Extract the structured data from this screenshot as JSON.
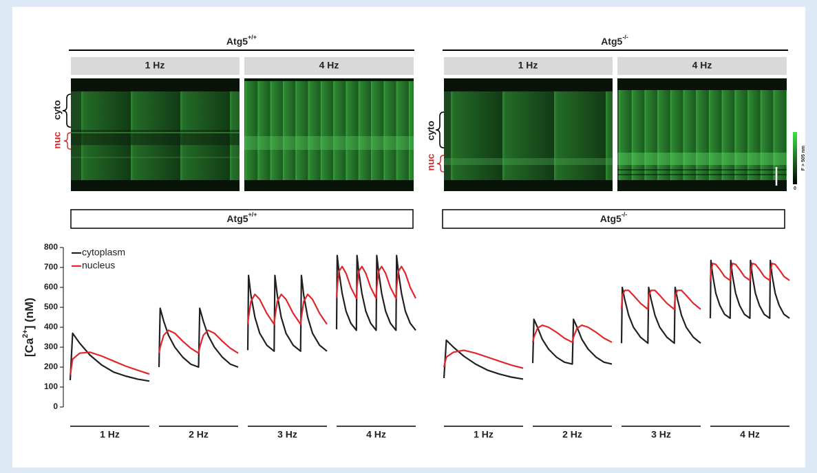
{
  "images": [
    {
      "genotype": {
        "text": "Atg5",
        "sup": "+/+"
      },
      "conditions": [
        "1 Hz",
        "4 Hz"
      ],
      "cyto_label": "cyto",
      "nuc_label": "nuc"
    },
    {
      "genotype": {
        "text": "Atg5",
        "sup": "-/-"
      },
      "conditions": [
        "1 Hz",
        "4 Hz"
      ],
      "cyto_label": "cyto",
      "nuc_label": "nuc"
    }
  ],
  "colorbar": {
    "label": "F > 505 nm",
    "min_label": "0"
  },
  "chart_data": [
    {
      "type": "line",
      "title": {
        "text": "Atg5",
        "sup": "+/+"
      },
      "ylabel": {
        "pre": "[Ca",
        "sup": "2+",
        "post": "]  (nM)"
      },
      "ylim": [
        0,
        800
      ],
      "yticks": [
        0,
        100,
        200,
        300,
        400,
        500,
        600,
        700,
        800
      ],
      "xlim": [
        0,
        1
      ],
      "categories": [
        "1 Hz",
        "2 Hz",
        "3 Hz",
        "4 Hz"
      ],
      "x": [
        [
          0,
          0.03,
          0.12,
          0.25,
          0.4,
          0.55,
          0.7,
          0.85,
          1.0
        ],
        [
          0,
          0.015,
          0.06,
          0.12,
          0.2,
          0.3,
          0.4,
          0.5,
          0.515,
          0.56,
          0.62,
          0.7,
          0.8,
          0.9,
          1.0
        ],
        [
          0,
          0.01,
          0.04,
          0.09,
          0.15,
          0.24,
          0.333,
          0.343,
          0.373,
          0.423,
          0.483,
          0.573,
          0.667,
          0.677,
          0.707,
          0.757,
          0.817,
          0.907,
          1.0
        ],
        [
          0,
          0.008,
          0.03,
          0.07,
          0.12,
          0.18,
          0.25,
          0.258,
          0.28,
          0.32,
          0.37,
          0.43,
          0.5,
          0.508,
          0.53,
          0.57,
          0.62,
          0.68,
          0.75,
          0.758,
          0.78,
          0.82,
          0.87,
          0.93,
          1.0
        ]
      ],
      "legend": true,
      "series": [
        {
          "name": "cytoplasm",
          "color": "#231f20",
          "values": [
            [
              135,
              370,
              320,
              260,
              210,
              175,
              155,
              140,
              130
            ],
            [
              200,
              495,
              430,
              360,
              300,
              250,
              215,
              200,
              495,
              430,
              360,
              300,
              250,
              215,
              200
            ],
            [
              285,
              660,
              560,
              450,
              370,
              310,
              280,
              660,
              560,
              450,
              370,
              310,
              280,
              660,
              560,
              450,
              370,
              310,
              280
            ],
            [
              390,
              760,
              680,
              570,
              480,
              420,
              385,
              760,
              680,
              570,
              480,
              420,
              385,
              760,
              680,
              570,
              480,
              420,
              385,
              760,
              680,
              570,
              480,
              420,
              385
            ]
          ]
        },
        {
          "name": "nucleus",
          "color": "#e0262b",
          "values": [
            [
              160,
              240,
              270,
              275,
              255,
              230,
              205,
              185,
              165
            ],
            [
              270,
              300,
              360,
              385,
              370,
              330,
              295,
              270,
              300,
              360,
              385,
              370,
              330,
              295,
              270
            ],
            [
              415,
              450,
              530,
              565,
              540,
              470,
              415,
              450,
              530,
              565,
              540,
              470,
              415,
              450,
              530,
              565,
              540,
              470,
              415
            ],
            [
              545,
              600,
              680,
              705,
              670,
              600,
              545,
              600,
              680,
              705,
              670,
              600,
              545,
              600,
              680,
              705,
              670,
              600,
              545,
              600,
              680,
              705,
              670,
              600,
              545
            ]
          ]
        }
      ]
    },
    {
      "type": "line",
      "title": {
        "text": "Atg5",
        "sup": "-/-"
      },
      "ylim": [
        0,
        800
      ],
      "xlim": [
        0,
        1
      ],
      "categories": [
        "1 Hz",
        "2 Hz",
        "3 Hz",
        "4 Hz"
      ],
      "x": [
        [
          0,
          0.03,
          0.12,
          0.25,
          0.4,
          0.55,
          0.7,
          0.85,
          1.0
        ],
        [
          0,
          0.015,
          0.06,
          0.12,
          0.2,
          0.3,
          0.4,
          0.5,
          0.515,
          0.56,
          0.62,
          0.7,
          0.8,
          0.9,
          1.0
        ],
        [
          0,
          0.01,
          0.04,
          0.09,
          0.15,
          0.24,
          0.333,
          0.343,
          0.373,
          0.423,
          0.483,
          0.573,
          0.667,
          0.677,
          0.707,
          0.757,
          0.817,
          0.907,
          1.0
        ],
        [
          0,
          0.008,
          0.03,
          0.07,
          0.12,
          0.18,
          0.25,
          0.258,
          0.28,
          0.32,
          0.37,
          0.43,
          0.5,
          0.508,
          0.53,
          0.57,
          0.62,
          0.68,
          0.75,
          0.758,
          0.78,
          0.82,
          0.87,
          0.93,
          1.0
        ]
      ],
      "series": [
        {
          "color": "#231f20",
          "values": [
            [
              145,
              335,
              300,
              255,
              215,
              185,
              165,
              150,
              140
            ],
            [
              220,
              440,
              400,
              340,
              290,
              250,
              225,
              215,
              440,
              400,
              340,
              290,
              250,
              225,
              215
            ],
            [
              320,
              600,
              540,
              460,
              400,
              350,
              320,
              600,
              540,
              460,
              400,
              350,
              320,
              600,
              540,
              460,
              400,
              350,
              320
            ],
            [
              445,
              735,
              660,
              570,
              510,
              465,
              445,
              735,
              660,
              570,
              510,
              465,
              445,
              735,
              660,
              570,
              510,
              465,
              445,
              735,
              660,
              570,
              510,
              465,
              445
            ]
          ]
        },
        {
          "color": "#e0262b",
          "values": [
            [
              200,
              250,
              275,
              285,
              270,
              250,
              230,
              210,
              195
            ],
            [
              325,
              350,
              395,
              410,
              400,
              375,
              345,
              325,
              350,
              395,
              410,
              400,
              375,
              345,
              325
            ],
            [
              490,
              560,
              585,
              585,
              560,
              520,
              490,
              560,
              585,
              585,
              560,
              520,
              490,
              560,
              585,
              585,
              560,
              520,
              490
            ],
            [
              630,
              680,
              720,
              715,
              690,
              655,
              635,
              680,
              720,
              715,
              690,
              655,
              635,
              680,
              720,
              715,
              690,
              655,
              635,
              680,
              720,
              715,
              690,
              655,
              635
            ]
          ]
        }
      ]
    }
  ]
}
